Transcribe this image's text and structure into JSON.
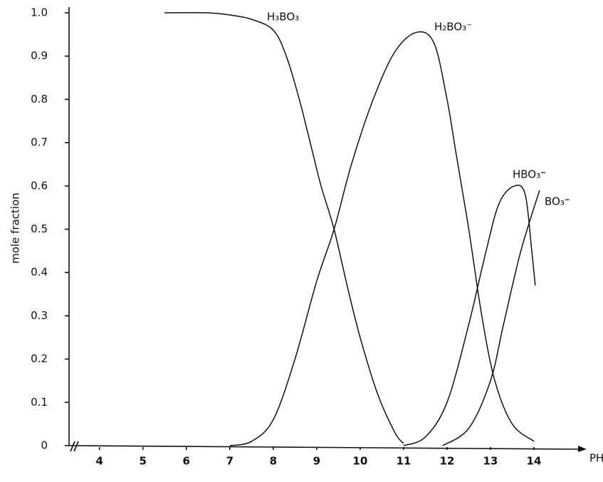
{
  "chart_data": {
    "type": "line",
    "x_label": "PH",
    "y_label": "mole fraction",
    "xlim": [
      3.3,
      15
    ],
    "ylim": [
      0,
      1
    ],
    "xticks": [
      4,
      5,
      6,
      7,
      8,
      9,
      10,
      11,
      12,
      13,
      14
    ],
    "yticks": [
      0,
      0.1,
      0.2,
      0.3,
      0.4,
      0.5,
      0.6,
      0.7,
      0.8,
      0.9,
      {
        "value": 1,
        "label": "1.0"
      }
    ],
    "grid": false,
    "series": [
      {
        "name": "H₃BO₃",
        "color": "#111111",
        "x": [
          5.5,
          6.5,
          7,
          7.5,
          8,
          8.3,
          8.6,
          8.9,
          9.1,
          9.4,
          9.7,
          10,
          10.4,
          10.8,
          11
        ],
        "values": [
          1.0,
          1.0,
          0.995,
          0.985,
          0.96,
          0.9,
          0.8,
          0.68,
          0.6,
          0.5,
          0.37,
          0.25,
          0.12,
          0.03,
          0.005
        ]
      },
      {
        "name": "H₂BO₃⁻",
        "color": "#111111",
        "x": [
          7,
          7.5,
          8,
          8.5,
          9,
          9.4,
          9.8,
          10.3,
          10.8,
          11.3,
          11.7,
          12,
          12.2,
          12.5,
          12.8,
          13.1,
          13.5,
          14
        ],
        "values": [
          0,
          0.01,
          0.06,
          0.2,
          0.38,
          0.5,
          0.65,
          0.8,
          0.91,
          0.955,
          0.93,
          0.8,
          0.68,
          0.5,
          0.3,
          0.15,
          0.05,
          0.01
        ]
      },
      {
        "name": "HBO₃⁼",
        "color": "#111111",
        "x": [
          11,
          11.5,
          12,
          12.5,
          12.9,
          13.2,
          13.55,
          13.8,
          13.95,
          14.03
        ],
        "values": [
          0,
          0.02,
          0.1,
          0.28,
          0.45,
          0.56,
          0.6,
          0.58,
          0.45,
          0.37
        ]
      },
      {
        "name": "BO₃⁼",
        "color": "#111111",
        "x": [
          11.9,
          12.5,
          13,
          13.3,
          13.7,
          14.13
        ],
        "values": [
          0,
          0.04,
          0.15,
          0.28,
          0.45,
          0.59
        ]
      }
    ]
  }
}
